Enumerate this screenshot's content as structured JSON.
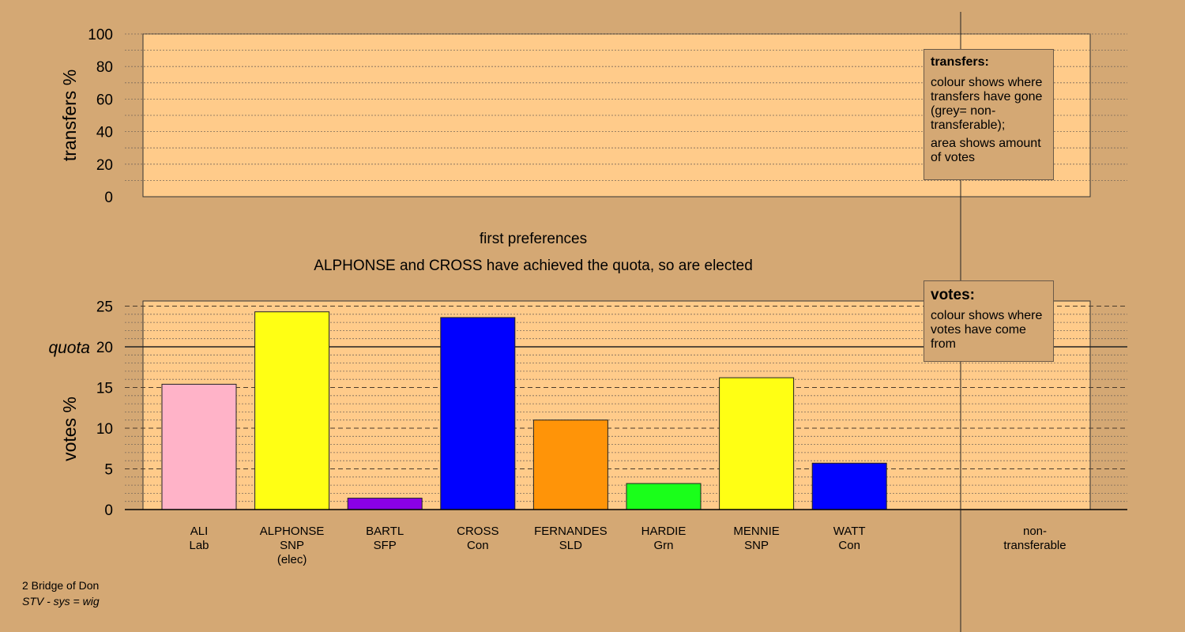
{
  "chart_data": {
    "type": "bar",
    "transfers_panel": {
      "ylabel": "transfers %",
      "ylim": [
        0,
        100
      ],
      "ticks": [
        0,
        20,
        40,
        60,
        80,
        100
      ]
    },
    "votes_panel": {
      "ylabel": "votes %",
      "ylim": [
        0,
        25
      ],
      "ticks": [
        0,
        5,
        10,
        15,
        20,
        25
      ],
      "quota": 20,
      "quota_label": "quota"
    },
    "stage_label": "first preferences",
    "message": "ALPHONSE and CROSS have achieved the quota, so are elected",
    "candidates": [
      {
        "name": "ALI",
        "party": "Lab",
        "note": "",
        "value": 15.4,
        "color": "#ffb3c8"
      },
      {
        "name": "ALPHONSE",
        "party": "SNP",
        "note": "(elec)",
        "value": 24.3,
        "color": "#ffff14"
      },
      {
        "name": "BARTL",
        "party": "SFP",
        "note": "",
        "value": 1.4,
        "color": "#8a00e6"
      },
      {
        "name": "CROSS",
        "party": "Con",
        "note": "",
        "value": 23.6,
        "color": "#0000ff"
      },
      {
        "name": "FERNANDES",
        "party": "SLD",
        "note": "",
        "value": 11.0,
        "color": "#ff9408"
      },
      {
        "name": "HARDIE",
        "party": "Grn",
        "note": "",
        "value": 3.2,
        "color": "#1aff1a"
      },
      {
        "name": "MENNIE",
        "party": "SNP",
        "note": "",
        "value": 16.2,
        "color": "#ffff14"
      },
      {
        "name": "WATT",
        "party": "Con",
        "note": "",
        "value": 5.7,
        "color": "#0000ff"
      }
    ],
    "nontransferable_label": [
      "non-",
      "transferable"
    ],
    "legend_transfers": {
      "title": "transfers:",
      "text1": "colour shows where transfers have gone (grey= non-transferable);",
      "text2": "area shows amount of votes"
    },
    "legend_votes": {
      "title": "votes:",
      "text1": "colour shows where votes have come from"
    }
  },
  "footer": {
    "ward": "2 Bridge of Don",
    "system": "STV - sys = wig"
  }
}
